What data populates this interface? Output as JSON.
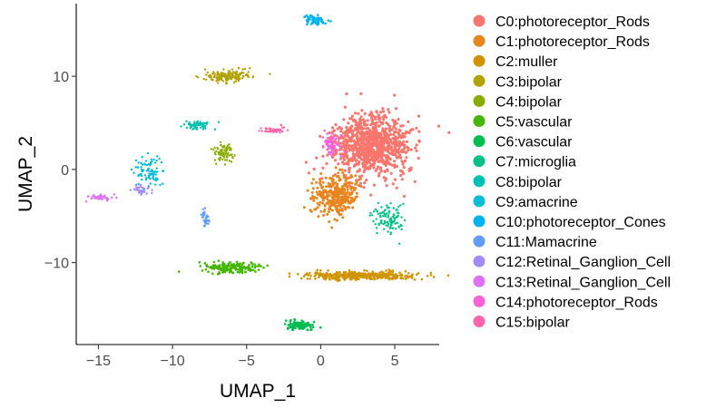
{
  "chart_data": {
    "type": "scatter",
    "title": "",
    "xlabel": "UMAP_1",
    "ylabel": "UMAP_2",
    "xlim": [
      -16.5,
      8.0
    ],
    "ylim": [
      -18.8,
      17.8
    ],
    "x_ticks": [
      -15,
      -10,
      -5,
      0,
      5
    ],
    "y_ticks": [
      -10,
      0,
      10
    ],
    "grid": false,
    "legend_position": "right",
    "series": [
      {
        "name": "C0:photoreceptor_Rods",
        "color": "#F8766D",
        "center": [
          3.4,
          2.6
        ]
      },
      {
        "name": "C1:photoreceptor_Rods",
        "color": "#E7851E",
        "center": [
          1.0,
          -2.8
        ]
      },
      {
        "name": "C2:muller",
        "color": "#D09400",
        "center": [
          2.8,
          -11.4
        ]
      },
      {
        "name": "C3:bipolar",
        "color": "#B2A100",
        "center": [
          -6.3,
          10.0
        ]
      },
      {
        "name": "C4:bipolar",
        "color": "#89AC00",
        "center": [
          -6.5,
          1.8
        ]
      },
      {
        "name": "C5:vascular",
        "color": "#45B500",
        "center": [
          -6.0,
          -10.5
        ]
      },
      {
        "name": "C6:vascular",
        "color": "#00BC51",
        "center": [
          -1.5,
          -16.8
        ]
      },
      {
        "name": "C7:microglia",
        "color": "#00C087",
        "center": [
          4.7,
          -5.5
        ]
      },
      {
        "name": "C8:bipolar",
        "color": "#00C0B2",
        "center": [
          -8.4,
          4.8
        ]
      },
      {
        "name": "C9:amacrine",
        "color": "#00BCD6",
        "center": [
          -11.5,
          -0.3
        ]
      },
      {
        "name": "C10:photoreceptor_Cones",
        "color": "#00B3F2",
        "center": [
          -0.3,
          16.0
        ]
      },
      {
        "name": "C11:Mamacrine",
        "color": "#619CFF",
        "center": [
          -7.8,
          -5.3
        ]
      },
      {
        "name": "C12:Retinal_Ganglion_Cell",
        "color": "#A58AFF",
        "center": [
          -12.2,
          -2.2
        ]
      },
      {
        "name": "C13:Retinal_Ganglion_Cell",
        "color": "#DF70F8",
        "center": [
          -14.8,
          -3.0
        ]
      },
      {
        "name": "C14:photoreceptor_Rods",
        "color": "#FB61D7",
        "center": [
          0.8,
          2.8
        ]
      },
      {
        "name": "C15:bipolar",
        "color": "#FF66A8",
        "center": [
          -3.2,
          4.3
        ]
      }
    ]
  }
}
